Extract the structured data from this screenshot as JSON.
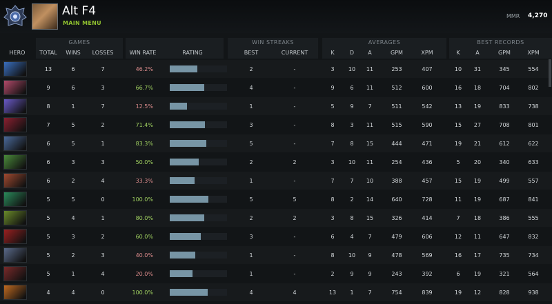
{
  "header": {
    "title": "Alt F4",
    "subtitle": "MAIN MENU",
    "mmr_label": "MMR",
    "mmr_value": "4,270"
  },
  "groups": {
    "games": "GAMES",
    "streaks": "WIN STREAKS",
    "averages": "AVERAGES",
    "best": "BEST RECORDS"
  },
  "columns": {
    "hero": "HERO",
    "total": "TOTAL",
    "wins": "WINS",
    "losses": "LOSSES",
    "winrate": "WIN RATE",
    "rating": "RATING",
    "best": "BEST",
    "current": "CURRENT",
    "k": "K",
    "d": "D",
    "a": "A",
    "gpm": "GPM",
    "xpm": "XPM",
    "bk": "K",
    "ba": "A",
    "bgpm": "GPM",
    "bxpm": "XPM"
  },
  "colors": {
    "good": "#9fcf60",
    "bad": "#d98a8a",
    "bar": "#7795a5"
  },
  "rows": [
    {
      "hero": "hero-1",
      "color": "#3a6fbf",
      "total": "13",
      "wins": "6",
      "losses": "7",
      "winrate": "46.2%",
      "good": false,
      "rating": 0.48,
      "best": "2",
      "current": "-",
      "k": "3",
      "d": "10",
      "a": "11",
      "gpm": "253",
      "xpm": "407",
      "bk": "10",
      "ba": "31",
      "bgpm": "345",
      "bxpm": "554"
    },
    {
      "hero": "hero-2",
      "color": "#b24a6a",
      "total": "9",
      "wins": "6",
      "losses": "3",
      "winrate": "66.7%",
      "good": true,
      "rating": 0.6,
      "best": "4",
      "current": "-",
      "k": "9",
      "d": "6",
      "a": "11",
      "gpm": "512",
      "xpm": "600",
      "bk": "16",
      "ba": "18",
      "bgpm": "704",
      "bxpm": "802"
    },
    {
      "hero": "hero-3",
      "color": "#6a5ac8",
      "total": "8",
      "wins": "1",
      "losses": "7",
      "winrate": "12.5%",
      "good": false,
      "rating": 0.3,
      "best": "1",
      "current": "-",
      "k": "5",
      "d": "9",
      "a": "7",
      "gpm": "511",
      "xpm": "542",
      "bk": "13",
      "ba": "19",
      "bgpm": "833",
      "bxpm": "738"
    },
    {
      "hero": "hero-4",
      "color": "#8a2030",
      "total": "7",
      "wins": "5",
      "losses": "2",
      "winrate": "71.4%",
      "good": true,
      "rating": 0.61,
      "best": "3",
      "current": "-",
      "k": "8",
      "d": "3",
      "a": "11",
      "gpm": "515",
      "xpm": "590",
      "bk": "15",
      "ba": "27",
      "bgpm": "708",
      "bxpm": "801"
    },
    {
      "hero": "hero-5",
      "color": "#4a6a9a",
      "total": "6",
      "wins": "5",
      "losses": "1",
      "winrate": "83.3%",
      "good": true,
      "rating": 0.64,
      "best": "5",
      "current": "-",
      "k": "7",
      "d": "8",
      "a": "15",
      "gpm": "444",
      "xpm": "471",
      "bk": "19",
      "ba": "21",
      "bgpm": "612",
      "bxpm": "622"
    },
    {
      "hero": "hero-6",
      "color": "#4a8a3a",
      "total": "6",
      "wins": "3",
      "losses": "3",
      "winrate": "50.0%",
      "good": true,
      "rating": 0.5,
      "best": "2",
      "current": "2",
      "k": "3",
      "d": "10",
      "a": "11",
      "gpm": "254",
      "xpm": "436",
      "bk": "5",
      "ba": "20",
      "bgpm": "340",
      "bxpm": "633"
    },
    {
      "hero": "hero-7",
      "color": "#a04a30",
      "total": "6",
      "wins": "2",
      "losses": "4",
      "winrate": "33.3%",
      "good": false,
      "rating": 0.43,
      "best": "1",
      "current": "-",
      "k": "7",
      "d": "7",
      "a": "10",
      "gpm": "388",
      "xpm": "457",
      "bk": "15",
      "ba": "19",
      "bgpm": "499",
      "bxpm": "557"
    },
    {
      "hero": "hero-8",
      "color": "#2a8a5a",
      "total": "5",
      "wins": "5",
      "losses": "0",
      "winrate": "100.0%",
      "good": true,
      "rating": 0.68,
      "best": "5",
      "current": "5",
      "k": "8",
      "d": "2",
      "a": "14",
      "gpm": "640",
      "xpm": "728",
      "bk": "11",
      "ba": "19",
      "bgpm": "687",
      "bxpm": "841"
    },
    {
      "hero": "hero-9",
      "color": "#6a8a2a",
      "total": "5",
      "wins": "4",
      "losses": "1",
      "winrate": "80.0%",
      "good": true,
      "rating": 0.6,
      "best": "2",
      "current": "2",
      "k": "3",
      "d": "8",
      "a": "15",
      "gpm": "326",
      "xpm": "414",
      "bk": "7",
      "ba": "18",
      "bgpm": "386",
      "bxpm": "555"
    },
    {
      "hero": "hero-10",
      "color": "#9a2020",
      "total": "5",
      "wins": "3",
      "losses": "2",
      "winrate": "60.0%",
      "good": true,
      "rating": 0.54,
      "best": "3",
      "current": "-",
      "k": "6",
      "d": "4",
      "a": "7",
      "gpm": "479",
      "xpm": "606",
      "bk": "12",
      "ba": "11",
      "bgpm": "647",
      "bxpm": "832"
    },
    {
      "hero": "hero-11",
      "color": "#5a6a8a",
      "total": "5",
      "wins": "2",
      "losses": "3",
      "winrate": "40.0%",
      "good": false,
      "rating": 0.44,
      "best": "1",
      "current": "-",
      "k": "8",
      "d": "10",
      "a": "9",
      "gpm": "478",
      "xpm": "569",
      "bk": "16",
      "ba": "17",
      "bgpm": "735",
      "bxpm": "734"
    },
    {
      "hero": "hero-12",
      "color": "#7a2a2a",
      "total": "5",
      "wins": "1",
      "losses": "4",
      "winrate": "20.0%",
      "good": false,
      "rating": 0.4,
      "best": "1",
      "current": "-",
      "k": "2",
      "d": "9",
      "a": "9",
      "gpm": "243",
      "xpm": "392",
      "bk": "6",
      "ba": "19",
      "bgpm": "321",
      "bxpm": "564"
    },
    {
      "hero": "hero-13",
      "color": "#c06a20",
      "total": "4",
      "wins": "4",
      "losses": "0",
      "winrate": "100.0%",
      "good": true,
      "rating": 0.66,
      "best": "4",
      "current": "4",
      "k": "13",
      "d": "1",
      "a": "7",
      "gpm": "754",
      "xpm": "839",
      "bk": "19",
      "ba": "12",
      "bgpm": "828",
      "bxpm": "938"
    }
  ]
}
